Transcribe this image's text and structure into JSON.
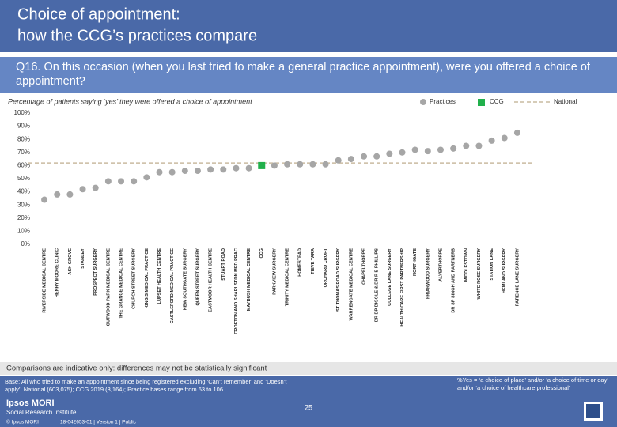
{
  "header": {
    "title_line1": "Choice of appointment:",
    "title_line2": "how the CCG’s practices compare",
    "question": "Q16. On this occasion (when you last tried to make a general practice appointment), were you offered a choice of appointment?"
  },
  "chart_data": {
    "type": "dot",
    "subtitle": "Percentage of patients saying ‘yes’ they were offered a choice of appointment",
    "categories": [
      "RIVERSIDE MEDICAL CENTRE",
      "HENRY MOORE CLINIC",
      "ASH GROVE",
      "STANLEY",
      "PROSPECT SURGERY",
      "OUTWOOD PARK MEDICAL CENTRE",
      "THE GRANGE MEDICAL CENTRE",
      "CHURCH STREET SURGERY",
      "KING'S MEDICAL PRACTICE",
      "LUPSET HEALTH CENTRE",
      "CASTLEFORD MEDICAL PRACTICE",
      "NEW SOUTHGATE SURGERY",
      "QUEEN STREET SURGERY",
      "EASTMOOR HEALTH CENTRE",
      "STUART ROAD",
      "CROFTON AND SHARLSTON MED PRAC",
      "MAYBUSH MEDICAL CENTRE",
      "CCG",
      "PARKVIEW SURGERY",
      "TRINITY MEDICAL CENTRE",
      "HOMESTEAD",
      "TIEVE TARA",
      "ORCHARD CROFT",
      "ST THOMAS ROAD SURGERY",
      "WARRENGATE MEDICAL CENTRE",
      "CHAPELTHORPE",
      "DR DP DIGGLE & DR R E PHILLIPS",
      "COLLEGE LANE SURGERY",
      "HEALTH CARE FIRST PARTNERSHIP",
      "NORTHGATE",
      "FRIARWOOD SURGERY",
      "ALVERTHORPE",
      "DR SP SINGH AND PARTNERS",
      "MIDDLESTOWN",
      "WHITE ROSE SURGERY",
      "STATION LANE",
      "HEMLAND SURGERY",
      "PATIENCE LANE SURGERY"
    ],
    "series": [
      {
        "name": "Practices",
        "color": "#a6a6a6",
        "values": [
          34,
          38,
          38,
          42,
          43,
          48,
          48,
          48,
          51,
          55,
          55,
          56,
          56,
          57,
          57,
          58,
          58,
          null,
          60,
          61,
          61,
          61,
          61,
          64,
          65,
          67,
          67,
          69,
          70,
          72,
          71,
          72,
          73,
          75,
          75,
          79,
          81,
          85
        ]
      },
      {
        "name": "CCG",
        "color": "#21b04b",
        "values": [
          null,
          null,
          null,
          null,
          null,
          null,
          null,
          null,
          null,
          null,
          null,
          null,
          null,
          null,
          null,
          null,
          null,
          60,
          null,
          null,
          null,
          null,
          null,
          null,
          null,
          null,
          null,
          null,
          null,
          null,
          null,
          null,
          null,
          null,
          null,
          null,
          null,
          null
        ]
      }
    ],
    "reference_line": {
      "name": "National",
      "value": 62,
      "color": "#c9bba0"
    },
    "ylim": [
      0,
      100
    ],
    "yticks": [
      {
        "value": 0,
        "label": "0%"
      },
      {
        "value": 10,
        "label": "10%"
      },
      {
        "value": 20,
        "label": "20%"
      },
      {
        "value": 30,
        "label": "30%"
      },
      {
        "value": 40,
        "label": "40%"
      },
      {
        "value": 50,
        "label": "50%"
      },
      {
        "value": 60,
        "label": "60%"
      },
      {
        "value": 70,
        "label": "70%"
      },
      {
        "value": 80,
        "label": "80%"
      },
      {
        "value": 90,
        "label": "90%"
      },
      {
        "value": 100,
        "label": "100%"
      }
    ],
    "legend_position": "top-right"
  },
  "footer": {
    "caveat": "Comparisons are indicative only: differences may not be statistically significant",
    "base": "Base: All who tried to make an appointment since being registered excluding ‘Can’t remember’ and ‘Doesn’t apply’: National (603,075); CCG 2019 (3,164); Practice bases range from 63 to 106",
    "definition": "%Yes = ‘a choice of place’ and/or ‘a choice of time or day’ and/or ‘a choice of healthcare professional’",
    "page_number": "25",
    "brand": "Ipsos MORI",
    "institute": "Social Research Institute",
    "copyright": "© Ipsos MORI",
    "job": "18-042653-01 | Version 1 | Public"
  }
}
